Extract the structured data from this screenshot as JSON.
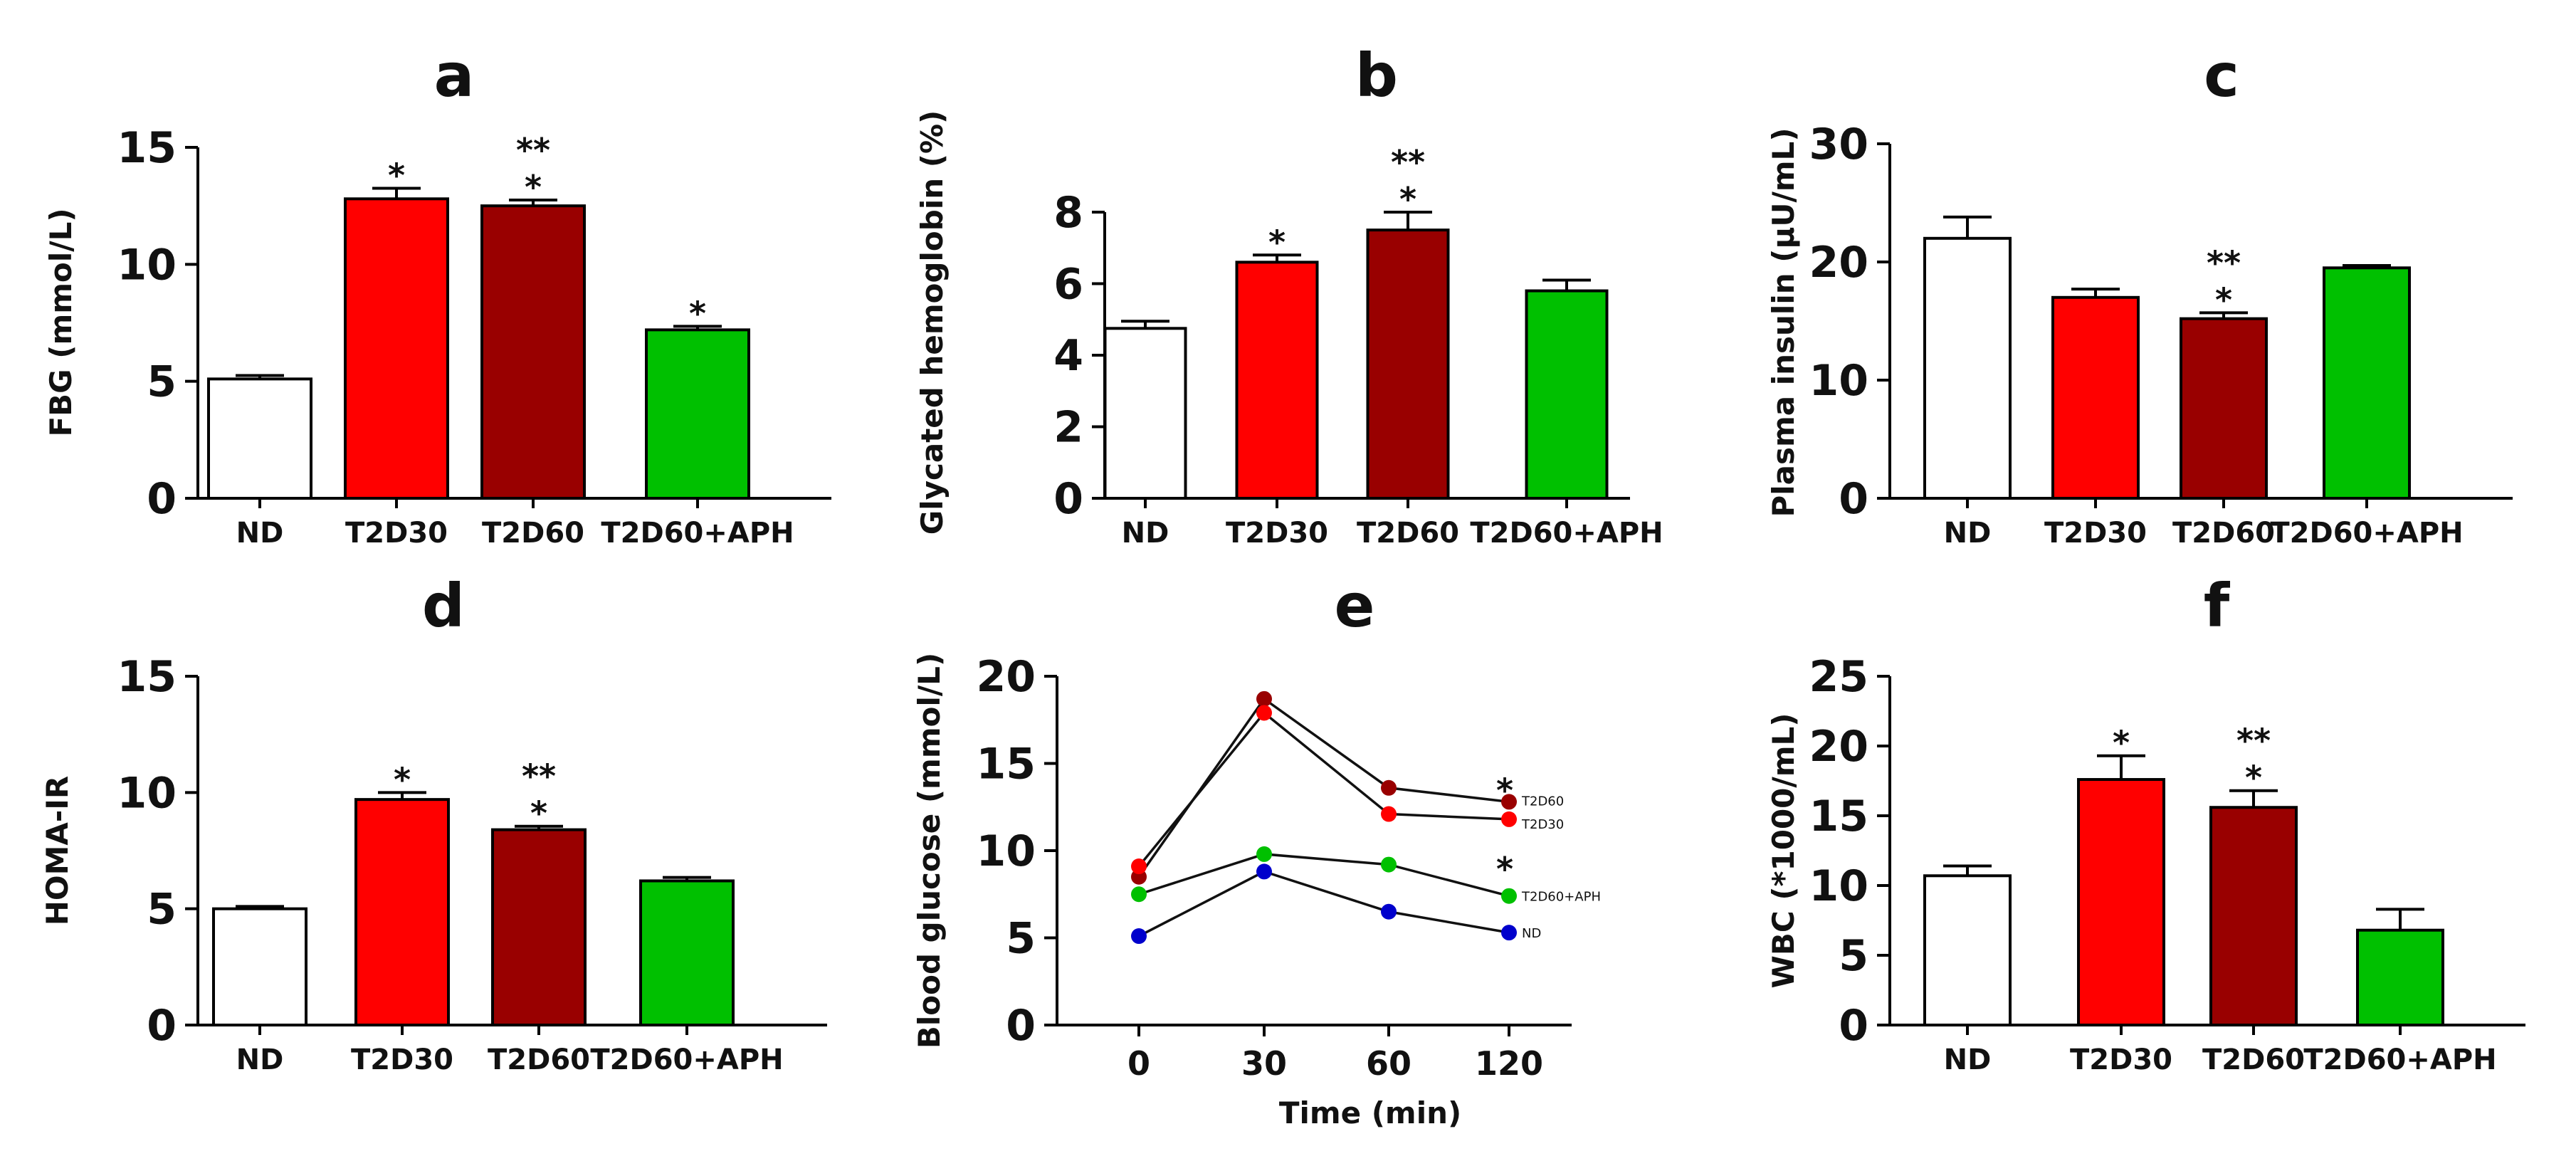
{
  "chart_data": [
    {
      "panel": "a",
      "type": "bar",
      "ylabel": "FBG (mmol/L)",
      "xlabel": "",
      "categories": [
        "ND",
        "T2D30",
        "T2D60",
        "T2D60+APH"
      ],
      "values": [
        5.1,
        12.8,
        12.5,
        7.2
      ],
      "errors": [
        0.15,
        0.45,
        0.25,
        0.15
      ],
      "significance": [
        "",
        "*",
        "**\n*",
        "*"
      ],
      "yticks": [
        0,
        5,
        10,
        15
      ],
      "ylim": [
        0,
        15
      ],
      "colors": [
        "#ffffff",
        "#ff0000",
        "#990000",
        "#00c000"
      ]
    },
    {
      "panel": "b",
      "type": "bar",
      "ylabel": "Glycated hemoglobin (%)",
      "xlabel": "",
      "categories": [
        "ND",
        "T2D30",
        "T2D60",
        "T2D60+APH"
      ],
      "values": [
        4.75,
        6.6,
        7.5,
        5.8
      ],
      "errors": [
        0.2,
        0.2,
        0.5,
        0.3
      ],
      "significance": [
        "",
        "*",
        "**\n*",
        ""
      ],
      "yticks": [
        0,
        2,
        4,
        6,
        8
      ],
      "ylim": [
        0,
        10
      ],
      "colors": [
        "#ffffff",
        "#ff0000",
        "#990000",
        "#00c000"
      ]
    },
    {
      "panel": "c",
      "type": "bar",
      "ylabel": "Plasma insulin (µU/mL)",
      "xlabel": "",
      "categories": [
        "ND",
        "T2D30",
        "T2D60",
        "T2D60+APH"
      ],
      "values": [
        22.0,
        17.0,
        15.2,
        19.5
      ],
      "errors": [
        1.8,
        0.7,
        0.5,
        0.2
      ],
      "significance": [
        "",
        "",
        "**\n*",
        ""
      ],
      "yticks": [
        0,
        10,
        20,
        30
      ],
      "ylim": [
        0,
        30
      ],
      "colors": [
        "#ffffff",
        "#ff0000",
        "#990000",
        "#00c000"
      ]
    },
    {
      "panel": "d",
      "type": "bar",
      "ylabel": "HOMA-IR",
      "xlabel": "",
      "categories": [
        "ND",
        "T2D30",
        "T2D60",
        "T2D60+APH"
      ],
      "values": [
        5.0,
        9.7,
        8.4,
        6.2
      ],
      "errors": [
        0.1,
        0.3,
        0.15,
        0.15
      ],
      "significance": [
        "",
        "*",
        "**\n*",
        ""
      ],
      "yticks": [
        0,
        5,
        10,
        15
      ],
      "ylim": [
        0,
        15
      ],
      "colors": [
        "#ffffff",
        "#ff0000",
        "#990000",
        "#00c000"
      ]
    },
    {
      "panel": "e",
      "type": "line",
      "ylabel": "Blood glucose (mmol/L)",
      "xlabel": "Time (min)",
      "x": [
        0,
        30,
        60,
        120
      ],
      "xticks": [
        0,
        30,
        60,
        120
      ],
      "yticks": [
        0,
        5,
        10,
        15,
        20
      ],
      "ylim": [
        0,
        20
      ],
      "series": [
        {
          "name": "T2D60",
          "values": [
            8.5,
            18.7,
            13.6,
            12.8
          ],
          "color": "#990000",
          "significance": "*"
        },
        {
          "name": "T2D30",
          "values": [
            9.1,
            17.9,
            12.1,
            11.8
          ],
          "color": "#ff0000",
          "significance": "*"
        },
        {
          "name": "T2D60+APH",
          "values": [
            7.5,
            9.8,
            9.2,
            7.4
          ],
          "color": "#00c000",
          "significance": ""
        },
        {
          "name": "ND",
          "values": [
            5.1,
            8.8,
            6.5,
            5.3
          ],
          "color": "#0000cc",
          "significance": ""
        }
      ]
    },
    {
      "panel": "f",
      "type": "bar",
      "ylabel": "WBC (*1000/mL)",
      "xlabel": "",
      "categories": [
        "ND",
        "T2D30",
        "T2D60",
        "T2D60+APH"
      ],
      "values": [
        10.7,
        17.6,
        15.6,
        6.8
      ],
      "errors": [
        0.7,
        1.7,
        1.2,
        1.5
      ],
      "significance": [
        "",
        "*",
        "**\n*",
        ""
      ],
      "yticks": [
        0,
        5,
        10,
        15,
        20,
        25
      ],
      "ylim": [
        0,
        25
      ],
      "colors": [
        "#ffffff",
        "#ff0000",
        "#990000",
        "#00c000"
      ]
    }
  ]
}
